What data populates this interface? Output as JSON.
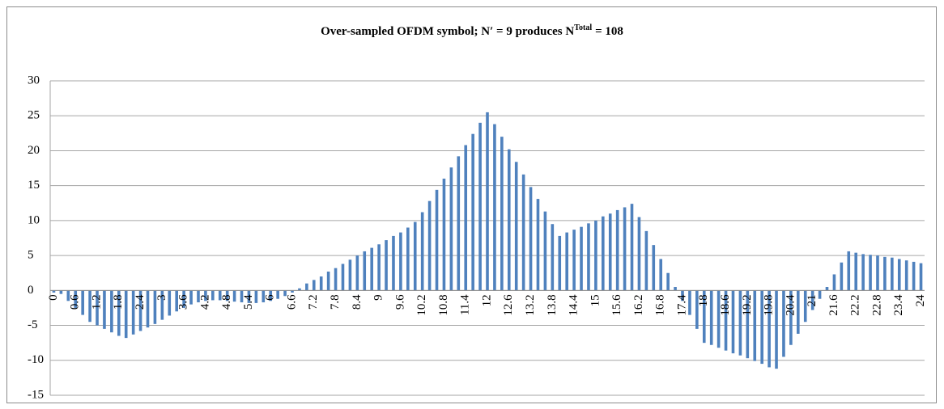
{
  "chart_data": {
    "type": "bar",
    "title": "Over-sampled OFDM symbol; N′ = 9 produces N",
    "title_superscript": "Total",
    "title_tail": "= 108",
    "categories": [
      "0",
      null,
      null,
      "0.6",
      null,
      null,
      "1.2",
      null,
      null,
      "1.8",
      null,
      null,
      "2.4",
      null,
      null,
      "3",
      null,
      null,
      "3.6",
      null,
      null,
      "4.2",
      null,
      null,
      "4.8",
      null,
      null,
      "5.4",
      null,
      null,
      "6",
      null,
      null,
      "6.6",
      null,
      null,
      "7.2",
      null,
      null,
      "7.8",
      null,
      null,
      "8.4",
      null,
      null,
      "9",
      null,
      null,
      "9.6",
      null,
      null,
      "10.2",
      null,
      null,
      "10.8",
      null,
      null,
      "11.4",
      null,
      null,
      "12",
      null,
      null,
      "12.6",
      null,
      null,
      "13.2",
      null,
      null,
      "13.8",
      null,
      null,
      "14.4",
      null,
      null,
      "15",
      null,
      null,
      "15.6",
      null,
      null,
      "16.2",
      null,
      null,
      "16.8",
      null,
      null,
      "17.4",
      null,
      null,
      "18",
      null,
      null,
      "18.6",
      null,
      null,
      "19.2",
      null,
      null,
      "19.8",
      null,
      null,
      "20.4",
      null,
      null,
      "21",
      null,
      null,
      "21.6",
      null,
      null,
      "22.2",
      null,
      null,
      "22.8",
      null,
      null,
      "23.4",
      null,
      null,
      "24"
    ],
    "values": [
      -0.3,
      -0.5,
      -1.5,
      -2.5,
      -3.5,
      -4.5,
      -5,
      -5.5,
      -6,
      -6.5,
      -6.8,
      -6.3,
      -5.8,
      -5.3,
      -4.8,
      -4.2,
      -3.6,
      -3,
      -2.5,
      -2,
      -1.7,
      -1.5,
      -1.4,
      -1.4,
      -1.5,
      -1.6,
      -1.7,
      -1.8,
      -1.8,
      -1.7,
      -1.5,
      -1.2,
      -0.8,
      -0.3,
      0.3,
      1,
      1.5,
      2,
      2.7,
      3.2,
      3.8,
      4.4,
      5,
      5.6,
      6.1,
      6.6,
      7.2,
      7.8,
      8.3,
      9,
      9.8,
      11.2,
      12.8,
      14.4,
      16,
      17.6,
      19.2,
      20.8,
      22.4,
      24,
      25.5,
      23.8,
      22,
      20.2,
      18.4,
      16.6,
      14.8,
      13.1,
      11.3,
      9.5,
      7.8,
      8.3,
      8.7,
      9.1,
      9.6,
      10,
      10.6,
      11,
      11.5,
      11.9,
      12.4,
      10.5,
      8.5,
      6.5,
      4.5,
      2.5,
      0.5,
      -1.5,
      -3.5,
      -5.5,
      -7.5,
      -7.8,
      -8.2,
      -8.6,
      -9,
      -9.3,
      -9.7,
      -10.1,
      -10.5,
      -11,
      -11.2,
      -9.5,
      -7.8,
      -6.2,
      -4.5,
      -2.8,
      -1.2,
      0.5,
      2.3,
      4,
      5.6,
      5.4,
      5.2,
      5.1,
      5,
      4.8,
      4.7,
      4.5,
      4.3,
      4.1,
      3.9
    ],
    "color": "#4f81bd",
    "ylim": [
      -15,
      30
    ],
    "yticks": [
      -15,
      -10,
      -5,
      0,
      5,
      10,
      15,
      20,
      25,
      30
    ],
    "grid": true
  }
}
